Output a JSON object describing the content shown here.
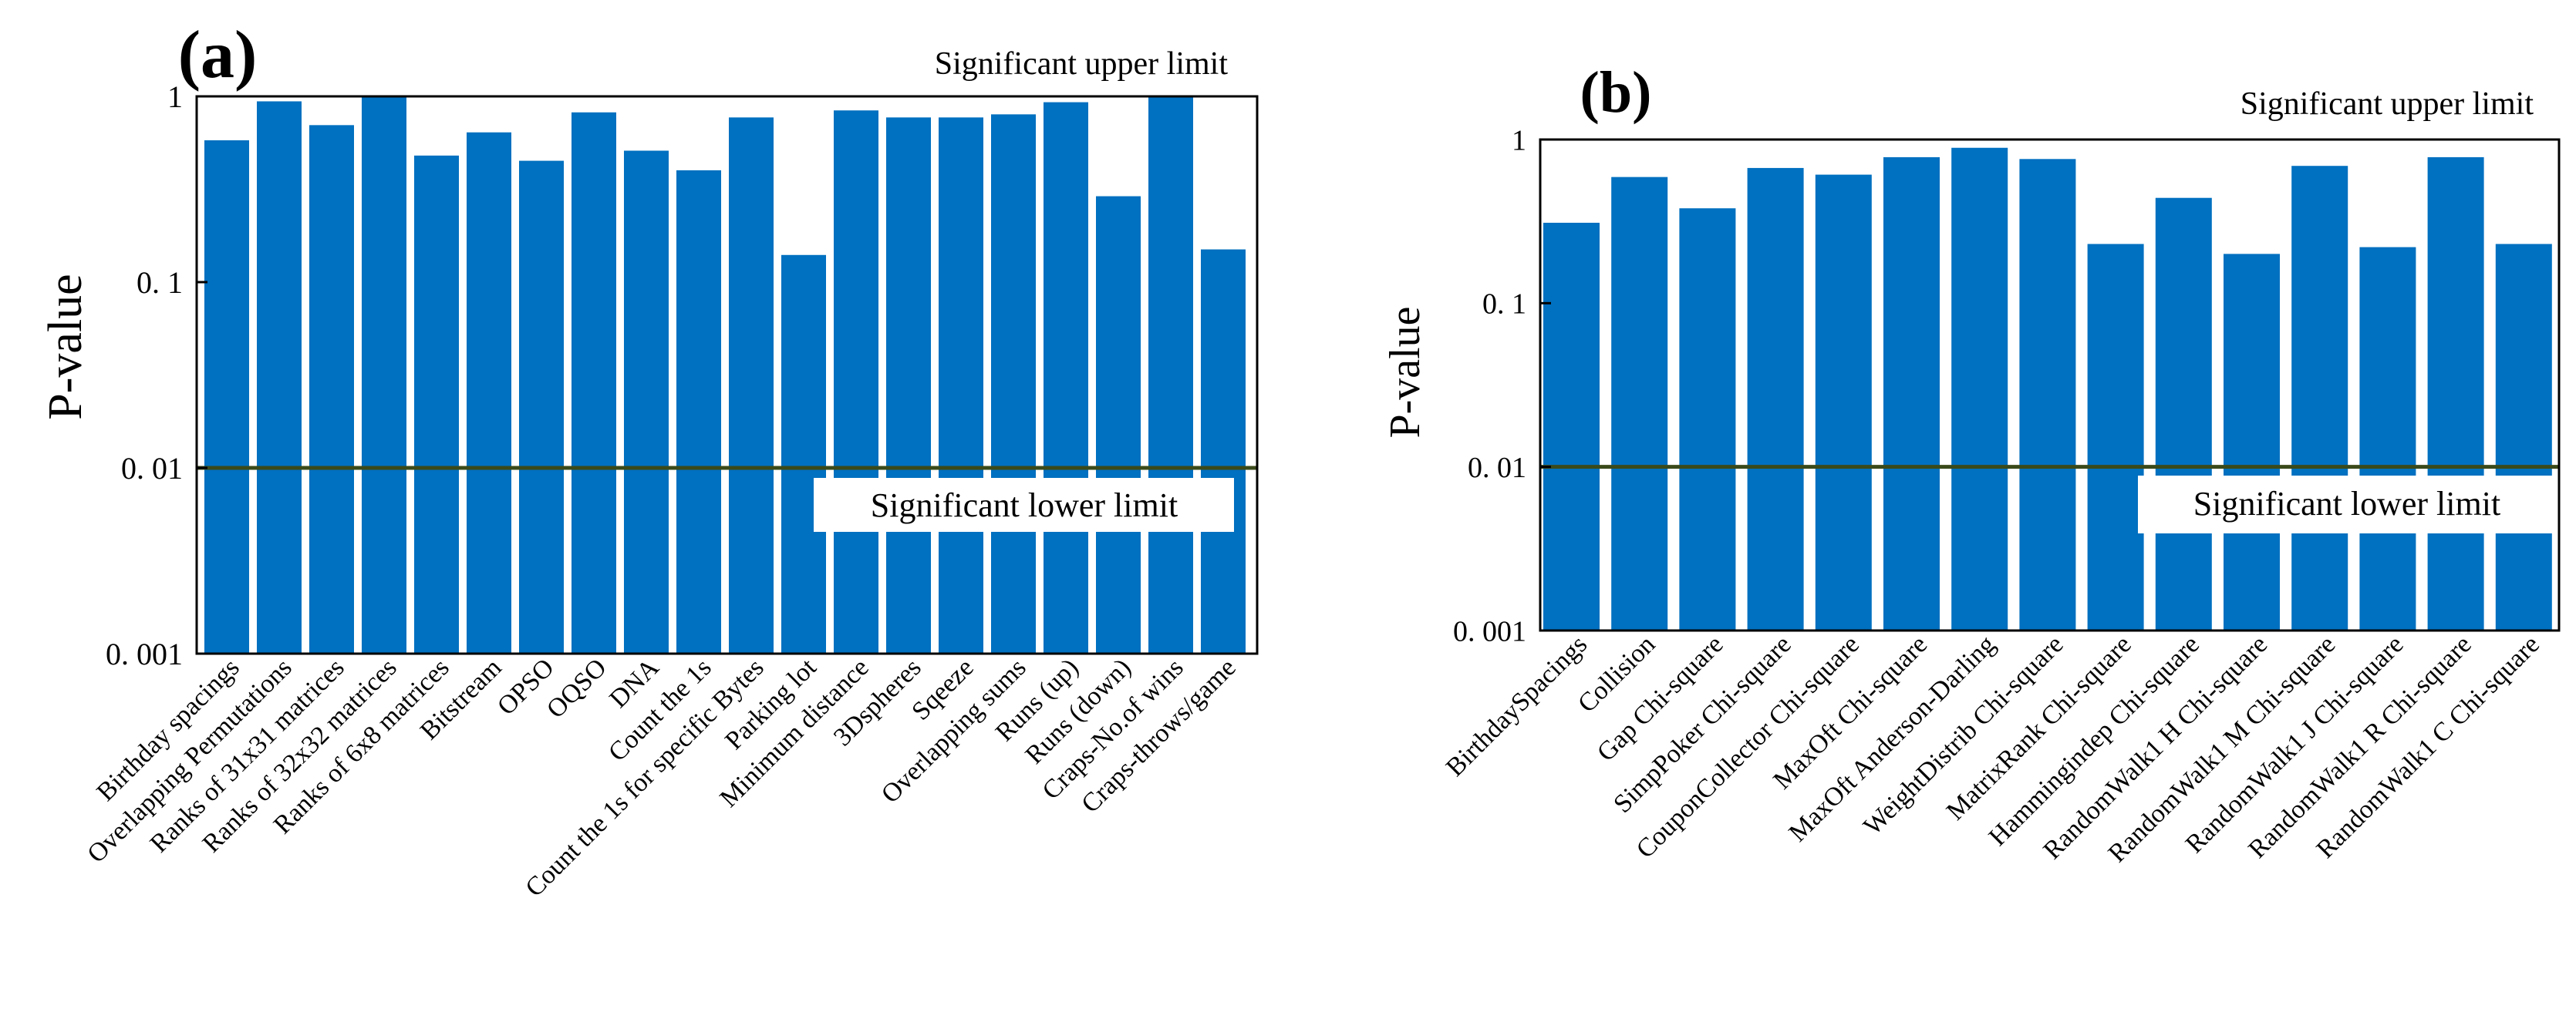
{
  "chart_data": [
    {
      "type": "bar",
      "panel_label": "(a)",
      "ylabel": "P-value",
      "yscale": "log",
      "ylim": [
        0.001,
        1
      ],
      "yticks": [
        {
          "value": 0.001,
          "label": "0. 001"
        },
        {
          "value": 0.01,
          "label": "0. 01"
        },
        {
          "value": 0.1,
          "label": "0. 1"
        },
        {
          "value": 1,
          "label": "1"
        }
      ],
      "categories": [
        "Birthday spacings",
        "Overlapping Permutations",
        "Ranks of 31x31 matrices",
        "Ranks of 32x32 matrices",
        "Ranks of 6x8 matrices",
        "Bitstream",
        "OPSO",
        "OQSO",
        "DNA",
        "Count the 1s",
        "Count the 1s for specific Bytes",
        "Parking lot",
        "Minimum distance",
        "3Dspheres",
        "Sqeeze",
        "Overlapping sums",
        "Runs (up)",
        "Runs (down)",
        "Craps-No.of wins",
        "Craps-throws/game"
      ],
      "values": [
        0.58,
        0.94,
        0.7,
        0.99,
        0.48,
        0.64,
        0.45,
        0.82,
        0.51,
        0.4,
        0.77,
        0.14,
        0.84,
        0.77,
        0.77,
        0.8,
        0.93,
        0.29,
        0.99,
        0.15
      ],
      "bar_color": "#0070c0",
      "threshold_line": {
        "value": 0.01,
        "color": "#3b4a1a"
      },
      "annotations": {
        "upper": "Significant upper limit",
        "lower": "Significant lower limit"
      }
    },
    {
      "type": "bar",
      "panel_label": "(b)",
      "ylabel": "P-value",
      "yscale": "log",
      "ylim": [
        0.001,
        1
      ],
      "yticks": [
        {
          "value": 0.001,
          "label": "0. 001"
        },
        {
          "value": 0.01,
          "label": "0. 01"
        },
        {
          "value": 0.1,
          "label": "0. 1"
        },
        {
          "value": 1,
          "label": "1"
        }
      ],
      "categories": [
        "BirthdaySpacings",
        "Collision",
        "Gap Chi-square",
        "SimpPoker Chi-square",
        "CouponCollector Chi-square",
        "MaxOft Chi-square",
        "MaxOft Anderson-Darling",
        "WeightDistrib Chi-square",
        "MatrixRank Chi-square",
        "Hammingindep Chi-square",
        "RandomWalk1 H Chi-square",
        "RandomWalk1 M Chi-square",
        "RandomWalk1 J Chi-square",
        "RandomWalk1 R Chi-square",
        "RandomWalk1 C Chi-square"
      ],
      "values": [
        0.31,
        0.59,
        0.38,
        0.67,
        0.61,
        0.78,
        0.89,
        0.76,
        0.23,
        0.44,
        0.2,
        0.69,
        0.22,
        0.78,
        0.23
      ],
      "bar_color": "#0070c0",
      "threshold_line": {
        "value": 0.01,
        "color": "#3b4a1a"
      },
      "annotations": {
        "upper": "Significant upper limit",
        "lower": "Significant lower limit"
      }
    }
  ]
}
